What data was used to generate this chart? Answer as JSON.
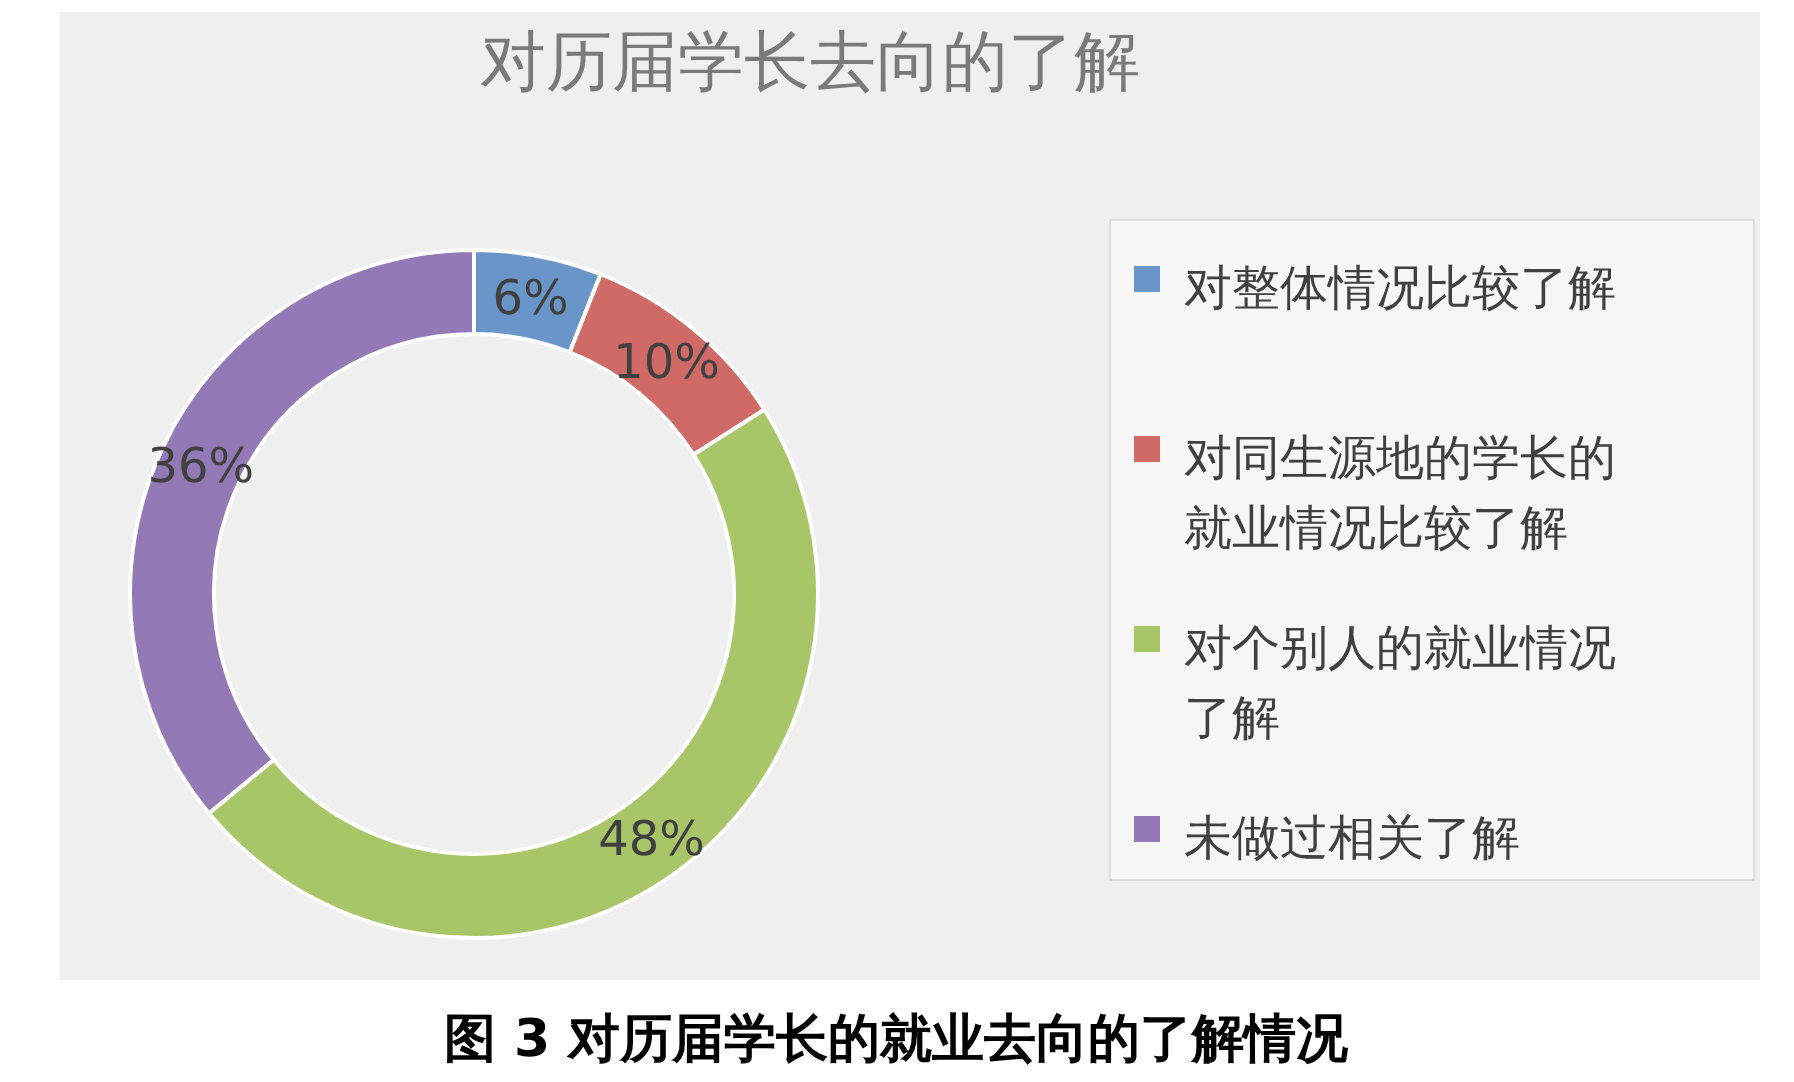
{
  "chart_data": {
    "type": "donut",
    "title": "对历届学长去向的了解",
    "categories": [
      "对整体情况比较了解",
      "对同生源地的学长的就业情况比较了解",
      "对个别人的就业情况了解",
      "未做过相关了解"
    ],
    "values": [
      6,
      10,
      48,
      36
    ],
    "colors": [
      "#6a95c9",
      "#cf6a66",
      "#a8c667",
      "#9379b5"
    ],
    "value_labels": [
      "6%",
      "10%",
      "48%",
      "36%"
    ],
    "legend": "right",
    "annotations": [
      "图 3  对历届学长的就业去向的了解情况"
    ]
  }
}
